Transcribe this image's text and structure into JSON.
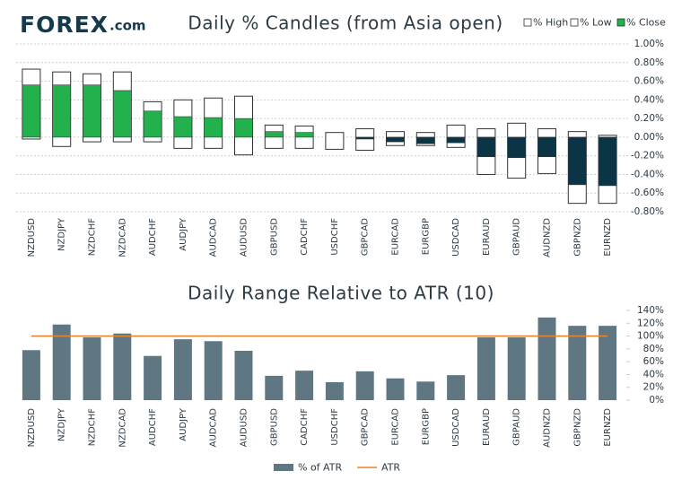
{
  "logo": {
    "name": "FOREX",
    "suffix": ".com"
  },
  "chart_data": [
    {
      "type": "candle",
      "title": "Daily % Candles (from Asia open)",
      "categories": [
        "NZDUSD",
        "NZDJPY",
        "NZDCHF",
        "NZDCAD",
        "AUDCHF",
        "AUDJPY",
        "AUDCAD",
        "AUDUSD",
        "GBPUSD",
        "CADCHF",
        "USDCHF",
        "GBPCAD",
        "EURCAD",
        "EURGBP",
        "USDCAD",
        "EURAUD",
        "GBPAUD",
        "AUDNZD",
        "GBPNZD",
        "EURNZD"
      ],
      "series": [
        {
          "name": "% High",
          "color": "#ffffff",
          "values": [
            0.73,
            0.7,
            0.68,
            0.7,
            0.38,
            0.4,
            0.42,
            0.44,
            0.13,
            0.12,
            0.05,
            0.09,
            0.06,
            0.05,
            0.13,
            0.09,
            0.15,
            0.09,
            0.06,
            0.02
          ]
        },
        {
          "name": "% Low",
          "color": "#ffffff",
          "values": [
            -0.02,
            -0.1,
            -0.05,
            -0.05,
            -0.05,
            -0.12,
            -0.12,
            -0.19,
            -0.12,
            -0.12,
            -0.13,
            -0.14,
            -0.09,
            -0.09,
            -0.11,
            -0.4,
            -0.44,
            -0.39,
            -0.71,
            -0.71
          ]
        },
        {
          "name": "% Close",
          "color": "#22b14c",
          "values": [
            0.56,
            0.56,
            0.56,
            0.5,
            0.28,
            0.22,
            0.21,
            0.2,
            0.06,
            0.05,
            0.0,
            -0.02,
            -0.05,
            -0.07,
            -0.06,
            -0.21,
            -0.22,
            -0.21,
            -0.51,
            -0.52
          ]
        }
      ],
      "negative_color": "#0c3447",
      "ylim": [
        -0.8,
        1.0
      ],
      "yticks": [
        {
          "value": 1.0,
          "label": "1.00%"
        },
        {
          "value": 0.8,
          "label": "0.80%"
        },
        {
          "value": 0.6,
          "label": "0.60%"
        },
        {
          "value": 0.4,
          "label": "0.40%"
        },
        {
          "value": 0.2,
          "label": "0.20%"
        },
        {
          "value": 0,
          "label": "0.00%"
        },
        {
          "value": -0.2,
          "label": "-0.20%"
        },
        {
          "value": -0.4,
          "label": "-0.40%"
        },
        {
          "value": -0.6,
          "label": "-0.60%"
        },
        {
          "value": -0.8,
          "label": "-0.80%"
        }
      ],
      "grid": true,
      "legend": "top-right"
    },
    {
      "type": "bar",
      "title": "Daily Range Relative to ATR (10)",
      "categories": [
        "NZDUSD",
        "NZDJPY",
        "NZDCHF",
        "NZDCAD",
        "AUDCHF",
        "AUDJPY",
        "AUDCAD",
        "AUDUSD",
        "GBPUSD",
        "CADCHF",
        "USDCHF",
        "GBPCAD",
        "EURCAD",
        "EURGBP",
        "USDCAD",
        "EURAUD",
        "GBPAUD",
        "AUDNZD",
        "GBPNZD",
        "EURNZD"
      ],
      "series": [
        {
          "name": "% of ATR",
          "type": "bar",
          "color": "#5e7782",
          "values": [
            78,
            118,
            98,
            104,
            69,
            95,
            92,
            77,
            38,
            46,
            28,
            45,
            34,
            29,
            39,
            98,
            98,
            129,
            116,
            116
          ]
        },
        {
          "name": "ATR",
          "type": "line",
          "color": "#e3862c",
          "values": [
            100,
            100,
            100,
            100,
            100,
            100,
            100,
            100,
            100,
            100,
            100,
            100,
            100,
            100,
            100,
            100,
            100,
            100,
            100,
            100
          ]
        }
      ],
      "ylim": [
        0,
        140
      ],
      "yticks": [
        {
          "value": 0,
          "label": "0%"
        },
        {
          "value": 20,
          "label": "20%"
        },
        {
          "value": 40,
          "label": "40%"
        },
        {
          "value": 60,
          "label": "60%"
        },
        {
          "value": 80,
          "label": "80%"
        },
        {
          "value": 100,
          "label": "100%"
        },
        {
          "value": 120,
          "label": "120%"
        },
        {
          "value": 140,
          "label": "140%"
        }
      ],
      "grid": false,
      "legend": "bottom"
    }
  ]
}
